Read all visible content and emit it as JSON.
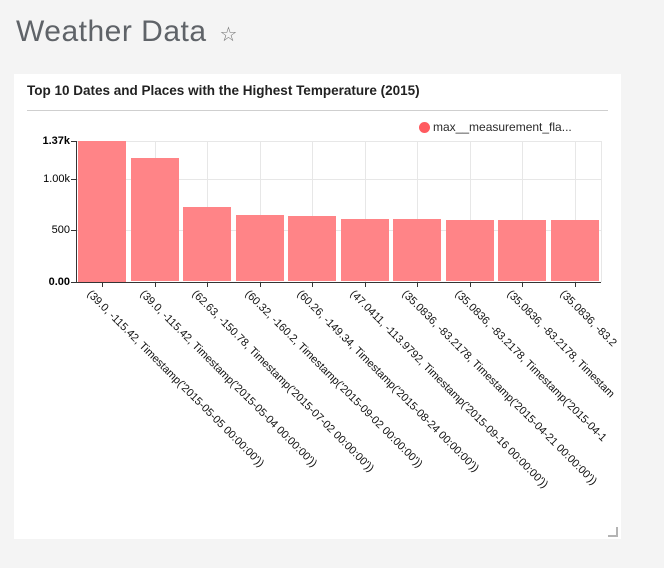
{
  "page": {
    "title": "Weather Data",
    "favorite_icon": "☆",
    "background_color": "#f4f4f4"
  },
  "card": {
    "title": "Top 10 Dates and Places with the Highest Temperature (2015)",
    "legend": {
      "label": "max__measurement_fla...",
      "color": "#ff5a5f"
    }
  },
  "chart_data": {
    "type": "bar",
    "title": "Top 10 Dates and Places with the Highest Temperature (2015)",
    "legend_entries": [
      "max__measurement_fla..."
    ],
    "legend_position": "top-right",
    "series_color": "#ff5a5f",
    "bar_fill": "#ff8487",
    "grid": true,
    "categories": [
      "(39.0, -115.42, Timestamp('2015-05-05 00:00:00'))",
      "(39.0, -115.42, Timestamp('2015-05-04 00:00:00'))",
      "(62.63, -150.78, Timestamp('2015-07-02 00:00:00'))",
      "(60.32, -160.2, Timestamp('2015-09-02 00:00:00'))",
      "(60.26, -149.34, Timestamp('2015-08-24 00:00:00'))",
      "(47.0411, -113.9792, Timestamp('2015-09-16 00:00:00'))",
      "(35.0836, -83.2178, Timestamp('2015-04-21 00:00:00'))",
      "(35.0836, -83.2178, Timestamp('2015-04-1",
      "(35.0836, -83.2178, Timestam",
      "(35.0836, -83.2"
    ],
    "values": [
      1370,
      1205,
      725,
      650,
      640,
      610,
      606,
      604,
      602,
      600
    ],
    "xlabel": "",
    "ylabel": "",
    "ylim": [
      0,
      1370
    ],
    "yticks": [
      {
        "label": "0.00",
        "value": 0,
        "bold": true
      },
      {
        "label": "500",
        "value": 500,
        "bold": false
      },
      {
        "label": "1.00k",
        "value": 1000,
        "bold": false
      },
      {
        "label": "1.37k",
        "value": 1370,
        "bold": true
      }
    ]
  }
}
